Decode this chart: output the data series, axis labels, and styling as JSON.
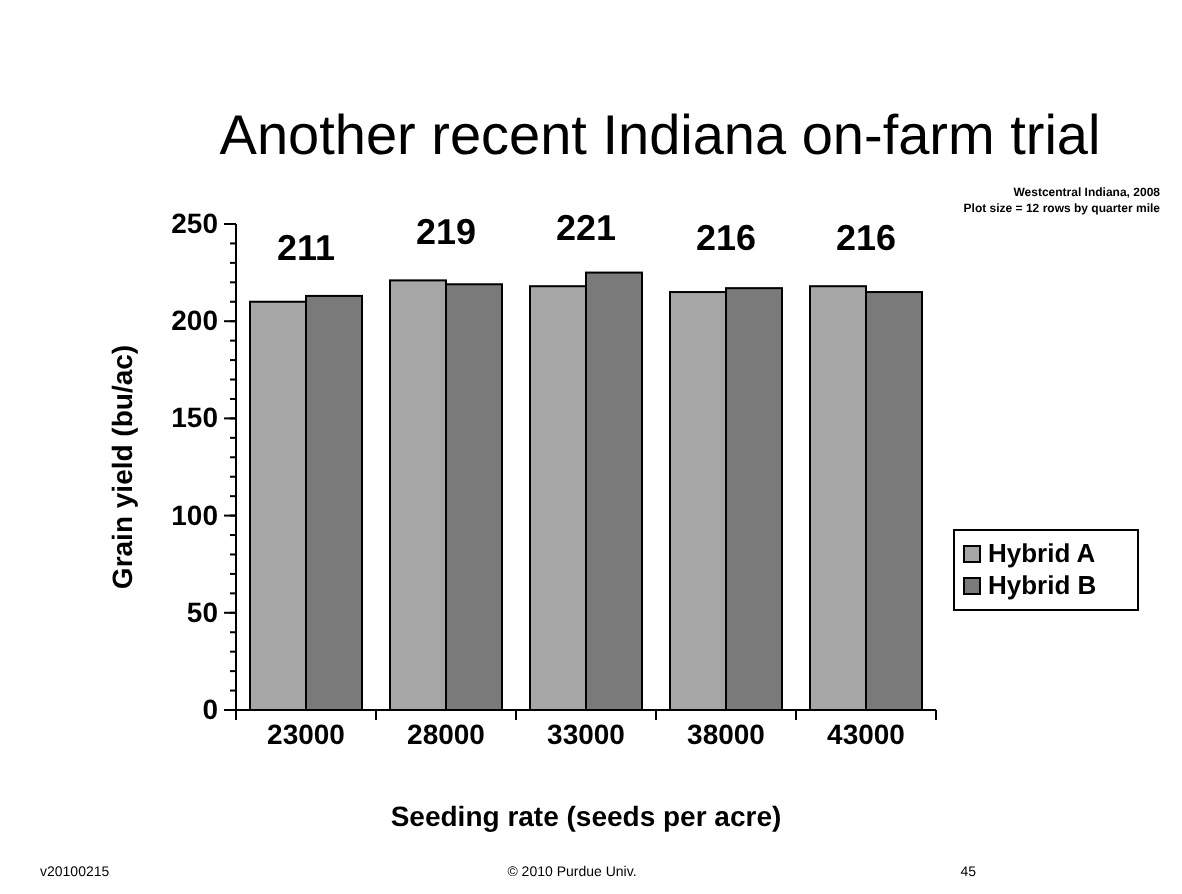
{
  "chart_data": {
    "type": "bar",
    "title": "Another recent Indiana on-farm trial",
    "subtitle": "Westcentral Indiana, 2008\nPlot size = 12 rows by quarter mile",
    "xlabel": "Seeding rate (seeds per acre)",
    "ylabel": "Grain yield (bu/ac)",
    "categories": [
      "23000",
      "28000",
      "33000",
      "38000",
      "43000"
    ],
    "series": [
      {
        "name": "Hybrid A",
        "color": "#a6a6a6",
        "values": [
          210,
          221,
          218,
          215,
          218
        ]
      },
      {
        "name": "Hybrid B",
        "color": "#7a7a7a",
        "values": [
          213,
          219,
          225,
          217,
          215
        ]
      }
    ],
    "ylim": [
      0,
      250
    ],
    "yticks": [
      0,
      50,
      100,
      150,
      200,
      250
    ],
    "grid": false,
    "legend": "right",
    "annotations": [
      {
        "text": "211",
        "x": "23000",
        "y": 211
      },
      {
        "text": "219",
        "x": "28000",
        "y": 219
      },
      {
        "text": "221",
        "x": "33000",
        "y": 221
      },
      {
        "text": "216",
        "x": "38000",
        "y": 216
      },
      {
        "text": "216",
        "x": "43000",
        "y": 216
      },
      "v20100215",
      "© 2010 Purdue Univ.",
      "45"
    ]
  }
}
